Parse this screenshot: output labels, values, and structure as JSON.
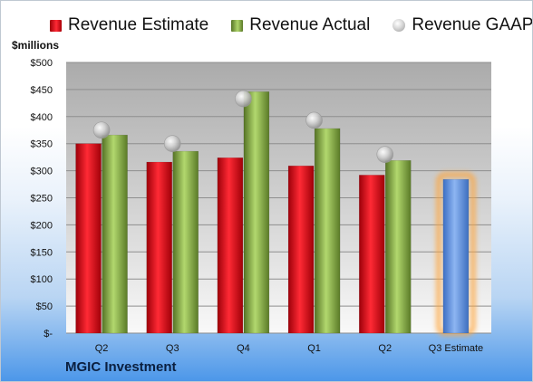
{
  "chart_data": {
    "type": "bar",
    "title": "",
    "ylabel": "$millions",
    "footer": "MGIC Investment",
    "categories": [
      "Q2",
      "Q3",
      "Q4",
      "Q1",
      "Q2",
      "Q3 Estimate"
    ],
    "y_ticks": [
      "$-",
      "$50",
      "$100",
      "$150",
      "$200",
      "$250",
      "$300",
      "$350",
      "$400",
      "$450",
      "$500"
    ],
    "ylim": [
      0,
      500
    ],
    "legend_position": "top",
    "grid": true,
    "series": [
      {
        "name": "Revenue Estimate",
        "type": "bar",
        "color": "#e01a24",
        "values": [
          350,
          316,
          324,
          309,
          292,
          null
        ]
      },
      {
        "name": "Revenue Actual",
        "type": "bar",
        "color": "#8fb04d",
        "values": [
          366,
          336,
          446,
          378,
          319,
          null
        ]
      },
      {
        "name": "Revenue GAAP",
        "type": "marker",
        "color": "#c8c8c8",
        "values": [
          375,
          350,
          433,
          393,
          330,
          null
        ]
      },
      {
        "name": "Q3 Estimate",
        "type": "bar",
        "color": "#5b8fe0",
        "values": [
          null,
          null,
          null,
          null,
          null,
          284
        ]
      }
    ]
  }
}
